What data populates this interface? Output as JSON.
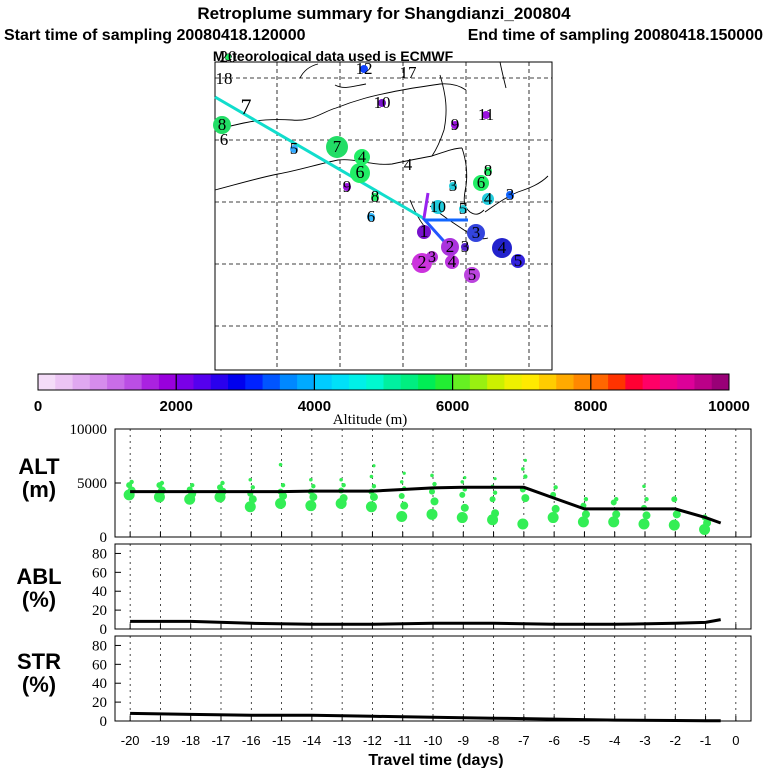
{
  "title": {
    "line1": "Retroplume summary for Shangdianzi_200804",
    "line2a": "Start time of sampling 20080418.120000",
    "line2b": "End time of sampling 20080418.150000",
    "line3": "Meteorological data used is ECMWF"
  },
  "map": {
    "markers": [
      {
        "label": "20",
        "color": "#22ee66"
      },
      {
        "label": "18",
        "color": "#22ee66"
      },
      {
        "label": "12",
        "color": "#1144ff"
      },
      {
        "label": "17",
        "color": "#22ee66"
      },
      {
        "label": "10",
        "color": "#7711cc"
      },
      {
        "label": "7",
        "color": "#22ee66"
      },
      {
        "label": "11",
        "color": "#9911dd"
      },
      {
        "label": "8",
        "color": "#22dd66"
      },
      {
        "label": "6",
        "color": "#22ee66"
      },
      {
        "label": "9",
        "color": "#9911dd"
      },
      {
        "label": "5",
        "color": "#33aaff"
      },
      {
        "label": "7",
        "color": "#22dd66"
      },
      {
        "label": "4",
        "color": "#22ee66"
      },
      {
        "label": "6",
        "color": "#22ee66"
      },
      {
        "label": "4",
        "color": "#22ee66"
      },
      {
        "label": "9",
        "color": "#9911dd"
      },
      {
        "label": "8",
        "color": "#22ee66"
      },
      {
        "label": "6",
        "color": "#33bbff"
      },
      {
        "label": "3",
        "color": "#22ccdd"
      },
      {
        "label": "6",
        "color": "#22ee66"
      },
      {
        "label": "8",
        "color": "#22ee66"
      },
      {
        "label": "3",
        "color": "#1166ff"
      },
      {
        "label": "4",
        "color": "#22ccdd"
      },
      {
        "label": "10",
        "color": "#22ccdd"
      },
      {
        "label": "5",
        "color": "#22ccdd"
      },
      {
        "label": "3",
        "color": "#3344dd"
      },
      {
        "label": "1",
        "color": "#7711cc"
      },
      {
        "label": "2",
        "color": "#aa33dd"
      },
      {
        "label": "3",
        "color": "#5522cc"
      },
      {
        "label": "4",
        "color": "#2222cc"
      },
      {
        "label": "5",
        "color": "#3322dd"
      },
      {
        "label": "2",
        "color": "#cc33dd"
      },
      {
        "label": "3",
        "color": "#bb33dd"
      },
      {
        "label": "4",
        "color": "#bb33dd"
      },
      {
        "label": "5",
        "color": "#bb44dd"
      }
    ]
  },
  "colorbar": {
    "ticks": [
      "0",
      "2000",
      "4000",
      "6000",
      "8000",
      "10000"
    ],
    "label": "Altitude (m)",
    "colors": [
      "#f4dcf8",
      "#ecc4f4",
      "#e0a8f0",
      "#d68cec",
      "#c96de8",
      "#bb4ee4",
      "#aa22e0",
      "#9900dd",
      "#7a00e8",
      "#5500ee",
      "#2a00ee",
      "#0000ee",
      "#0022ff",
      "#0055ff",
      "#0088ff",
      "#00aaff",
      "#00ccff",
      "#00e0f8",
      "#00f0e8",
      "#00f8d0",
      "#00f0a0",
      "#00ee80",
      "#00ee55",
      "#22ee33",
      "#66f022",
      "#99f011",
      "#ccf000",
      "#eef000",
      "#ffea00",
      "#ffcc00",
      "#ffaa00",
      "#ff8800",
      "#ff6600",
      "#ff3300",
      "#ff0033",
      "#ff0066",
      "#ee0088",
      "#dd0099",
      "#bb0088",
      "#990077"
    ]
  },
  "chart_data": [
    {
      "type": "line",
      "title": "ALT (m)",
      "ylabel": "ALT (m)",
      "xlabel": "Travel time (days)",
      "x": [
        -20,
        -19,
        -18,
        -17,
        -16,
        -15,
        -14,
        -13,
        -12,
        -11,
        -10,
        -9,
        -8,
        -7,
        -6,
        -5,
        -4,
        -3,
        -2,
        -1,
        -0.5
      ],
      "values": [
        4200,
        4200,
        4200,
        4200,
        4200,
        4200,
        4250,
        4250,
        4250,
        4400,
        4550,
        4600,
        4600,
        4600,
        3600,
        2600,
        2600,
        2600,
        2600,
        1800,
        1300
      ],
      "scatter_points": [
        {
          "x": -20,
          "y": [
            3900,
            4300,
            4800,
            5100
          ]
        },
        {
          "x": -19,
          "y": [
            3700,
            4300,
            4800,
            5000
          ]
        },
        {
          "x": -18,
          "y": [
            3500,
            4000,
            4400,
            4800
          ]
        },
        {
          "x": -17,
          "y": [
            3700,
            4200,
            4600,
            5000
          ]
        },
        {
          "x": -16,
          "y": [
            2800,
            3500,
            4000,
            4600,
            5300
          ]
        },
        {
          "x": -15,
          "y": [
            3100,
            3800,
            4200,
            4800,
            6700
          ]
        },
        {
          "x": -14,
          "y": [
            2900,
            3700,
            4200,
            4700,
            5300
          ]
        },
        {
          "x": -13,
          "y": [
            3100,
            3600,
            4300,
            4800,
            5300
          ]
        },
        {
          "x": -12,
          "y": [
            2800,
            3700,
            4200,
            4700,
            5600,
            6600
          ]
        },
        {
          "x": -11,
          "y": [
            1900,
            2900,
            3800,
            4500,
            5100,
            5900
          ]
        },
        {
          "x": -10,
          "y": [
            2100,
            3300,
            4200,
            4900,
            5700
          ]
        },
        {
          "x": -9,
          "y": [
            1800,
            2700,
            3900,
            4400,
            5100,
            5500
          ]
        },
        {
          "x": -8,
          "y": [
            1600,
            2200,
            3500,
            4100,
            4700,
            5400
          ]
        },
        {
          "x": -7,
          "y": [
            1200,
            3600,
            4400,
            5600,
            6300,
            7100
          ]
        },
        {
          "x": -6,
          "y": [
            1800,
            2600,
            3900,
            4600
          ]
        },
        {
          "x": -5,
          "y": [
            1400,
            2100,
            2900,
            3500
          ]
        },
        {
          "x": -4,
          "y": [
            1400,
            2100,
            3200,
            3500
          ]
        },
        {
          "x": -3,
          "y": [
            1200,
            2000,
            2700,
            3500,
            4700
          ]
        },
        {
          "x": -2,
          "y": [
            1100,
            2100,
            3500
          ]
        },
        {
          "x": -1,
          "y": [
            700,
            1300,
            1800
          ]
        }
      ],
      "ylim": [
        0,
        10000
      ],
      "yticks": [
        "0",
        "5000",
        "10000"
      ]
    },
    {
      "type": "line",
      "title": "ABL (%)",
      "ylabel": "ABL (%)",
      "x": [
        -20,
        -18,
        -16,
        -14,
        -12,
        -10,
        -8,
        -6,
        -4,
        -2,
        -1,
        -0.5
      ],
      "values": [
        8,
        8,
        6,
        5,
        5,
        6,
        6,
        5,
        5,
        6,
        7,
        10
      ],
      "ylim": [
        0,
        90
      ],
      "yticks": [
        "0",
        "20",
        "40",
        "60",
        "80"
      ]
    },
    {
      "type": "line",
      "title": "STR (%)",
      "ylabel": "STR (%)",
      "xlabel": "Travel time (days)",
      "x": [
        -20,
        -18,
        -16,
        -14,
        -12,
        -10,
        -8,
        -6,
        -4,
        -2,
        -1,
        -0.5
      ],
      "values": [
        8,
        7,
        6,
        6,
        5,
        4,
        3,
        2,
        1,
        0.5,
        0.3,
        0.2
      ],
      "ylim": [
        0,
        90
      ],
      "yticks": [
        "0",
        "20",
        "40",
        "60",
        "80"
      ],
      "xticks": [
        "-20",
        "-19",
        "-18",
        "-17",
        "-16",
        "-15",
        "-14",
        "-13",
        "-12",
        "-11",
        "-10",
        "-9",
        "-8",
        "-7",
        "-6",
        "-5",
        "-4",
        "-3",
        "-2",
        "-1",
        "0"
      ]
    }
  ]
}
